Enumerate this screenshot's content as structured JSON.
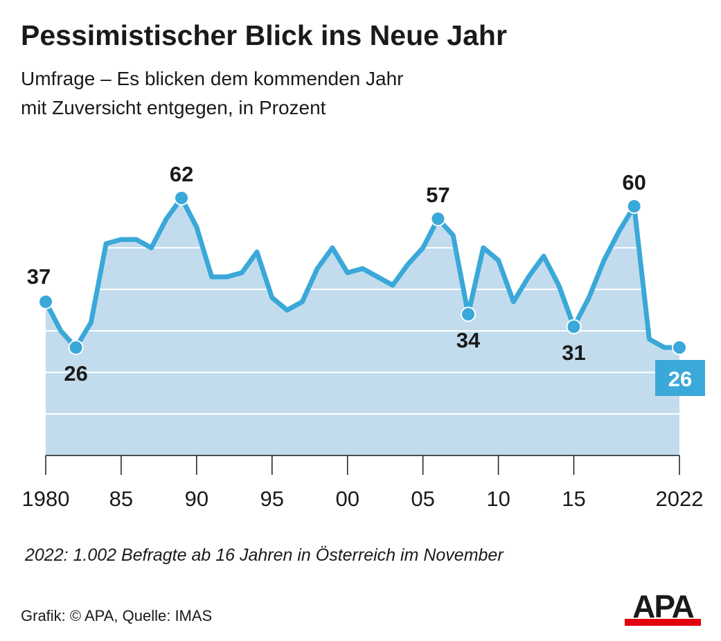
{
  "title": "Pessimistischer Blick ins Neue Jahr",
  "subtitle_lines": [
    "Umfrage – Es blicken dem kommenden Jahr",
    "mit Zuversicht entgegen, in Prozent"
  ],
  "note": "2022: 1.002 Befragte ab 16 Jahren in Österreich im November",
  "footer": "Grafik: © APA, Quelle: IMAS",
  "logo_text": "APA",
  "colors": {
    "line": "#3aa8d8",
    "area": "#c2dcee",
    "label_box": "#3aa8d8",
    "logo_red": "#e3000f"
  },
  "chart_data": {
    "type": "area",
    "x": [
      1980,
      1981,
      1982,
      1983,
      1984,
      1985,
      1986,
      1987,
      1988,
      1989,
      1990,
      1991,
      1992,
      1993,
      1994,
      1995,
      1996,
      1997,
      1998,
      1999,
      2000,
      2001,
      2002,
      2003,
      2004,
      2005,
      2006,
      2007,
      2008,
      2009,
      2010,
      2011,
      2012,
      2013,
      2014,
      2015,
      2016,
      2017,
      2018,
      2019,
      2020,
      2021,
      2022
    ],
    "values": [
      37,
      30,
      26,
      32,
      51,
      52,
      52,
      50,
      57,
      62,
      55,
      43,
      43,
      44,
      49,
      38,
      35,
      37,
      45,
      50,
      44,
      45,
      43,
      41,
      46,
      50,
      57,
      53,
      34,
      50,
      47,
      37,
      43,
      48,
      41,
      31,
      38,
      47,
      54,
      60,
      28,
      26,
      26
    ],
    "ylim": [
      0,
      70
    ],
    "gridlines": [
      10,
      20,
      30,
      40,
      50
    ],
    "xticks": [
      1980,
      1985,
      1990,
      1995,
      2000,
      2005,
      2010,
      2015,
      2022
    ],
    "xtick_labels": [
      "1980",
      "85",
      "90",
      "95",
      "00",
      "05",
      "10",
      "15",
      "2022"
    ],
    "annotations": [
      {
        "year": 1980,
        "value": 37,
        "label": "37",
        "position": "above"
      },
      {
        "year": 1982,
        "value": 26,
        "label": "26",
        "position": "below"
      },
      {
        "year": 1989,
        "value": 62,
        "label": "62",
        "position": "above"
      },
      {
        "year": 2006,
        "value": 57,
        "label": "57",
        "position": "above"
      },
      {
        "year": 2008,
        "value": 34,
        "label": "34",
        "position": "below"
      },
      {
        "year": 2015,
        "value": 31,
        "label": "31",
        "position": "below"
      },
      {
        "year": 2019,
        "value": 60,
        "label": "60",
        "position": "above"
      },
      {
        "year": 2022,
        "value": 26,
        "label": "26",
        "position": "highlight-box"
      }
    ]
  }
}
